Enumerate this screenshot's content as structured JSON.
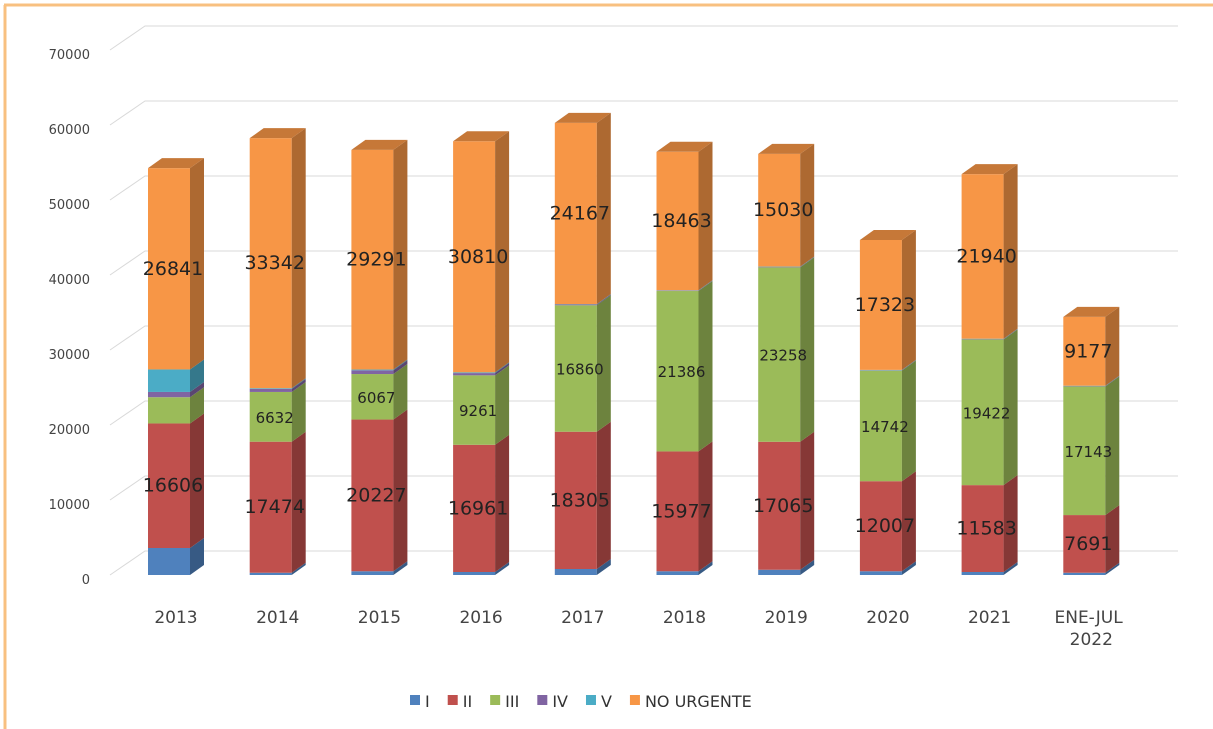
{
  "chart_data": {
    "type": "bar3d_stacked",
    "categories": [
      "2013",
      "2014",
      "2015",
      "2016",
      "2017",
      "2018",
      "2019",
      "2020",
      "2021",
      "ENE-JUL 2022"
    ],
    "series": [
      {
        "name": "I",
        "color": "#4f81bd",
        "values": [
          3600,
          300,
          500,
          400,
          800,
          500,
          700,
          500,
          400,
          300
        ]
      },
      {
        "name": "II",
        "color": "#c0504d",
        "values": [
          16606,
          17474,
          20227,
          16961,
          18305,
          15977,
          17065,
          12007,
          11583,
          7691
        ]
      },
      {
        "name": "III",
        "color": "#9bbb59",
        "values": [
          3500,
          6632,
          6067,
          9261,
          16860,
          21386,
          23258,
          14742,
          19422,
          17143
        ]
      },
      {
        "name": "IV",
        "color": "#8064a2",
        "values": [
          700,
          400,
          500,
          300,
          100,
          50,
          50,
          50,
          50,
          50
        ]
      },
      {
        "name": "V",
        "color": "#4bacc6",
        "values": [
          3000,
          100,
          100,
          100,
          50,
          50,
          50,
          50,
          50,
          50
        ]
      },
      {
        "name": "NO URGENTE",
        "color": "#f79646",
        "values": [
          26841,
          33342,
          29291,
          30810,
          24167,
          18463,
          15030,
          17323,
          21940,
          9177
        ]
      }
    ],
    "ylim": [
      0,
      70000
    ],
    "yticks": [
      0,
      10000,
      20000,
      30000,
      40000,
      50000,
      60000,
      70000
    ],
    "grid": true,
    "legend": "bottom"
  }
}
